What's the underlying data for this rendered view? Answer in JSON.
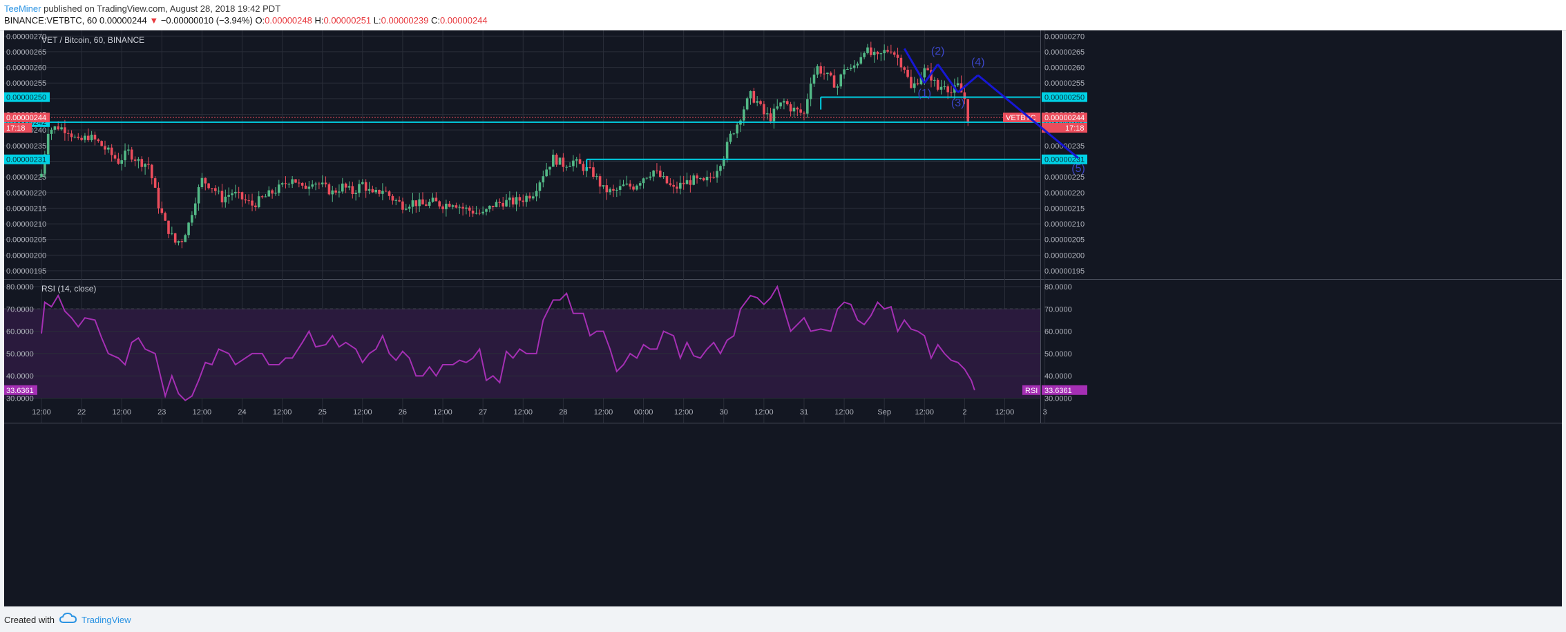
{
  "header": {
    "author": "TeeMiner",
    "published": "published on TradingView.com, August 28, 2018 19:42 PDT",
    "symbol": "BINANCE:VETBTC, 60",
    "last": "0.00000244",
    "change_arrow": "▼",
    "change": "−0.00000010 (−3.94%)",
    "o_label": "O:",
    "o": "0.00000248",
    "h_label": "H:",
    "h": "0.00000251",
    "l_label": "L:",
    "l": "0.00000239",
    "c_label": "C:",
    "c": "0.00000244"
  },
  "footer": {
    "created_with": "Created with",
    "brand": "TradingView",
    "logo_icon": "tradingview-cloud-icon"
  },
  "colors": {
    "background": "#131722",
    "rsi_band": "#2a1a3d",
    "bull": "#53b987",
    "bear": "#eb4d5c",
    "level": "#00d2e6",
    "wave": "#1717d4",
    "wave_label": "#3b46c8",
    "rsi_line": "#a52fb4",
    "grid": "#2a2e39"
  },
  "chart_data": [
    {
      "type": "candlestick",
      "title": "VET / Bitcoin, 60, BINANCE",
      "x_ticks": [
        "12:00",
        "22",
        "12:00",
        "23",
        "12:00",
        "24",
        "12:00",
        "25",
        "12:00",
        "26",
        "12:00",
        "27",
        "12:00",
        "28",
        "12:00",
        "00:00",
        "12:00",
        "30",
        "12:00",
        "31",
        "12:00",
        "Sep",
        "12:00",
        "2",
        "12:00",
        "3"
      ],
      "y_ticks": [
        "0.00000270",
        "0.00000265",
        "0.00000260",
        "0.00000255",
        "0.00000250",
        "0.00000245",
        "0.00000240",
        "0.00000235",
        "0.00000230",
        "0.00000225",
        "0.00000220",
        "0.00000215",
        "0.00000210",
        "0.00000205",
        "0.00000200",
        "0.00000195"
      ],
      "ylim": [
        1.915e-06,
        2.72e-06
      ],
      "grid": true,
      "close_path": [
        [
          0,
          2.26
        ],
        [
          2,
          2.4
        ],
        [
          5,
          2.41
        ],
        [
          8,
          2.4
        ],
        [
          11,
          2.36
        ],
        [
          14,
          2.38
        ],
        [
          17,
          2.36
        ],
        [
          20,
          2.33
        ],
        [
          23,
          2.3
        ],
        [
          26,
          2.33
        ],
        [
          29,
          2.3
        ],
        [
          32,
          2.29
        ],
        [
          35,
          2.16
        ],
        [
          37,
          2.1
        ],
        [
          40,
          2.04
        ],
        [
          42,
          2.05
        ],
        [
          44,
          2.1
        ],
        [
          46,
          2.18
        ],
        [
          48,
          2.24
        ],
        [
          51,
          2.22
        ],
        [
          54,
          2.18
        ],
        [
          57,
          2.2
        ],
        [
          60,
          2.18
        ],
        [
          63,
          2.16
        ],
        [
          66,
          2.18
        ],
        [
          69,
          2.2
        ],
        [
          72,
          2.22
        ],
        [
          75,
          2.25
        ],
        [
          78,
          2.21
        ],
        [
          81,
          2.24
        ],
        [
          84,
          2.22
        ],
        [
          87,
          2.2
        ],
        [
          90,
          2.22
        ],
        [
          93,
          2.2
        ],
        [
          96,
          2.23
        ],
        [
          99,
          2.19
        ],
        [
          102,
          2.21
        ],
        [
          105,
          2.18
        ],
        [
          108,
          2.16
        ],
        [
          111,
          2.17
        ],
        [
          114,
          2.16
        ],
        [
          117,
          2.17
        ],
        [
          120,
          2.16
        ],
        [
          123,
          2.17
        ],
        [
          126,
          2.15
        ],
        [
          129,
          2.14
        ],
        [
          132,
          2.13
        ],
        [
          135,
          2.16
        ],
        [
          138,
          2.17
        ],
        [
          141,
          2.17
        ],
        [
          144,
          2.18
        ],
        [
          147,
          2.2
        ],
        [
          150,
          2.26
        ],
        [
          153,
          2.31
        ],
        [
          156,
          2.29
        ],
        [
          159,
          2.3
        ],
        [
          162,
          2.28
        ],
        [
          165,
          2.26
        ],
        [
          168,
          2.21
        ],
        [
          171,
          2.2
        ],
        [
          174,
          2.22
        ],
        [
          177,
          2.22
        ],
        [
          180,
          2.25
        ],
        [
          183,
          2.27
        ],
        [
          186,
          2.24
        ],
        [
          189,
          2.21
        ],
        [
          192,
          2.23
        ],
        [
          195,
          2.24
        ],
        [
          198,
          2.23
        ],
        [
          201,
          2.26
        ],
        [
          204,
          2.32
        ],
        [
          206,
          2.38
        ],
        [
          208,
          2.42
        ],
        [
          210,
          2.47
        ],
        [
          212,
          2.51
        ],
        [
          214,
          2.49
        ],
        [
          216,
          2.45
        ],
        [
          218,
          2.44
        ],
        [
          220,
          2.47
        ],
        [
          222,
          2.49
        ],
        [
          224,
          2.47
        ],
        [
          226,
          2.46
        ],
        [
          228,
          2.45
        ],
        [
          230,
          2.56
        ],
        [
          232,
          2.6
        ],
        [
          234,
          2.58
        ],
        [
          236,
          2.56
        ],
        [
          238,
          2.54
        ],
        [
          240,
          2.6
        ],
        [
          242,
          2.59
        ],
        [
          244,
          2.62
        ],
        [
          246,
          2.66
        ],
        [
          248,
          2.64
        ],
        [
          250,
          2.63
        ],
        [
          252,
          2.65
        ],
        [
          254,
          2.66
        ],
        [
          256,
          2.63
        ],
        [
          258,
          2.6
        ],
        [
          260,
          2.53
        ],
        [
          262,
          2.56
        ],
        [
          264,
          2.59
        ],
        [
          266,
          2.57
        ],
        [
          268,
          2.53
        ],
        [
          270,
          2.55
        ],
        [
          272,
          2.52
        ],
        [
          274,
          2.54
        ],
        [
          276,
          2.5
        ],
        [
          277,
          2.44
        ]
      ],
      "horizontal_levels": [
        {
          "value": "0.00000250",
          "price": 2.505,
          "from_hour": 0,
          "label_right": true,
          "label_left": true
        },
        {
          "value": "0.00000242",
          "price": 2.425,
          "from_hour": 0,
          "label_right": true,
          "label_left": true
        },
        {
          "value": "0.00000231",
          "price": 2.306,
          "from_hour": 0,
          "label_right": true,
          "label_left": true
        }
      ],
      "price_line": {
        "label": "VETBTC",
        "value": "0.00000244",
        "countdown": "17:18",
        "price": 2.44
      },
      "wave_labels": [
        "(1)",
        "(2)",
        "(3)",
        "(4)",
        "(5)"
      ],
      "wave_points": [
        [
          258,
          2.66
        ],
        [
          264,
          2.55
        ],
        [
          268,
          2.61
        ],
        [
          274,
          2.52
        ],
        [
          280,
          2.575
        ],
        [
          310,
          2.31
        ]
      ]
    },
    {
      "type": "line",
      "title": "RSI (14, close)",
      "y_ticks": [
        "80.0000",
        "70.0000",
        "60.0000",
        "50.0000",
        "40.0000",
        "30.0000"
      ],
      "ylim": [
        26.5,
        81.5
      ],
      "band": [
        30,
        70
      ],
      "last_value": "33.6361",
      "last_label": "RSI",
      "points": [
        [
          0,
          59
        ],
        [
          1,
          73
        ],
        [
          3,
          71
        ],
        [
          5,
          76
        ],
        [
          7,
          69
        ],
        [
          9,
          66
        ],
        [
          11,
          62
        ],
        [
          13,
          66
        ],
        [
          16,
          65
        ],
        [
          18,
          57
        ],
        [
          20,
          50
        ],
        [
          23,
          48
        ],
        [
          25,
          45
        ],
        [
          27,
          55
        ],
        [
          29,
          57
        ],
        [
          31,
          52
        ],
        [
          34,
          50
        ],
        [
          37,
          31
        ],
        [
          39,
          40
        ],
        [
          41,
          32
        ],
        [
          43,
          29
        ],
        [
          45,
          31
        ],
        [
          47,
          38
        ],
        [
          49,
          46
        ],
        [
          51,
          45
        ],
        [
          53,
          52
        ],
        [
          56,
          50
        ],
        [
          58,
          45
        ],
        [
          60,
          47
        ],
        [
          63,
          50
        ],
        [
          66,
          50
        ],
        [
          68,
          45
        ],
        [
          71,
          45
        ],
        [
          73,
          48
        ],
        [
          75,
          48
        ],
        [
          78,
          55
        ],
        [
          80,
          60
        ],
        [
          82,
          53
        ],
        [
          85,
          54
        ],
        [
          87,
          58
        ],
        [
          89,
          53
        ],
        [
          91,
          55
        ],
        [
          94,
          52
        ],
        [
          96,
          46
        ],
        [
          98,
          50
        ],
        [
          100,
          52
        ],
        [
          102,
          58
        ],
        [
          104,
          50
        ],
        [
          106,
          47
        ],
        [
          108,
          51
        ],
        [
          110,
          48
        ],
        [
          112,
          40
        ],
        [
          114,
          40
        ],
        [
          116,
          44
        ],
        [
          118,
          40
        ],
        [
          120,
          45
        ],
        [
          123,
          45
        ],
        [
          125,
          47
        ],
        [
          127,
          46
        ],
        [
          129,
          48
        ],
        [
          131,
          52
        ],
        [
          133,
          38
        ],
        [
          135,
          40
        ],
        [
          137,
          37
        ],
        [
          139,
          51
        ],
        [
          141,
          48
        ],
        [
          143,
          52
        ],
        [
          145,
          50
        ],
        [
          148,
          50
        ],
        [
          150,
          65
        ],
        [
          153,
          74
        ],
        [
          155,
          74
        ],
        [
          157,
          77
        ],
        [
          159,
          68
        ],
        [
          162,
          68
        ],
        [
          164,
          58
        ],
        [
          166,
          60
        ],
        [
          168,
          60
        ],
        [
          170,
          52
        ],
        [
          172,
          42
        ],
        [
          174,
          45
        ],
        [
          176,
          50
        ],
        [
          178,
          48
        ],
        [
          180,
          54
        ],
        [
          182,
          52
        ],
        [
          184,
          52
        ],
        [
          186,
          60
        ],
        [
          189,
          58
        ],
        [
          191,
          48
        ],
        [
          193,
          55
        ],
        [
          195,
          49
        ],
        [
          197,
          48
        ],
        [
          199,
          52
        ],
        [
          201,
          55
        ],
        [
          203,
          50
        ],
        [
          205,
          56
        ],
        [
          207,
          58
        ],
        [
          209,
          70
        ],
        [
          212,
          76
        ],
        [
          214,
          75
        ],
        [
          216,
          72
        ],
        [
          218,
          75
        ],
        [
          220,
          80
        ],
        [
          222,
          70
        ],
        [
          224,
          60
        ],
        [
          226,
          63
        ],
        [
          228,
          66
        ],
        [
          230,
          60
        ],
        [
          233,
          61
        ],
        [
          236,
          60
        ],
        [
          238,
          70
        ],
        [
          240,
          73
        ],
        [
          242,
          72
        ],
        [
          244,
          65
        ],
        [
          246,
          63
        ],
        [
          248,
          67
        ],
        [
          250,
          73
        ],
        [
          252,
          70
        ],
        [
          254,
          71
        ],
        [
          256,
          60
        ],
        [
          258,
          65
        ],
        [
          260,
          61
        ],
        [
          262,
          60
        ],
        [
          264,
          58
        ],
        [
          266,
          48
        ],
        [
          268,
          54
        ],
        [
          270,
          50
        ],
        [
          272,
          47
        ],
        [
          274,
          46
        ],
        [
          276,
          43
        ],
        [
          278,
          38
        ],
        [
          279,
          33.6
        ]
      ]
    }
  ]
}
